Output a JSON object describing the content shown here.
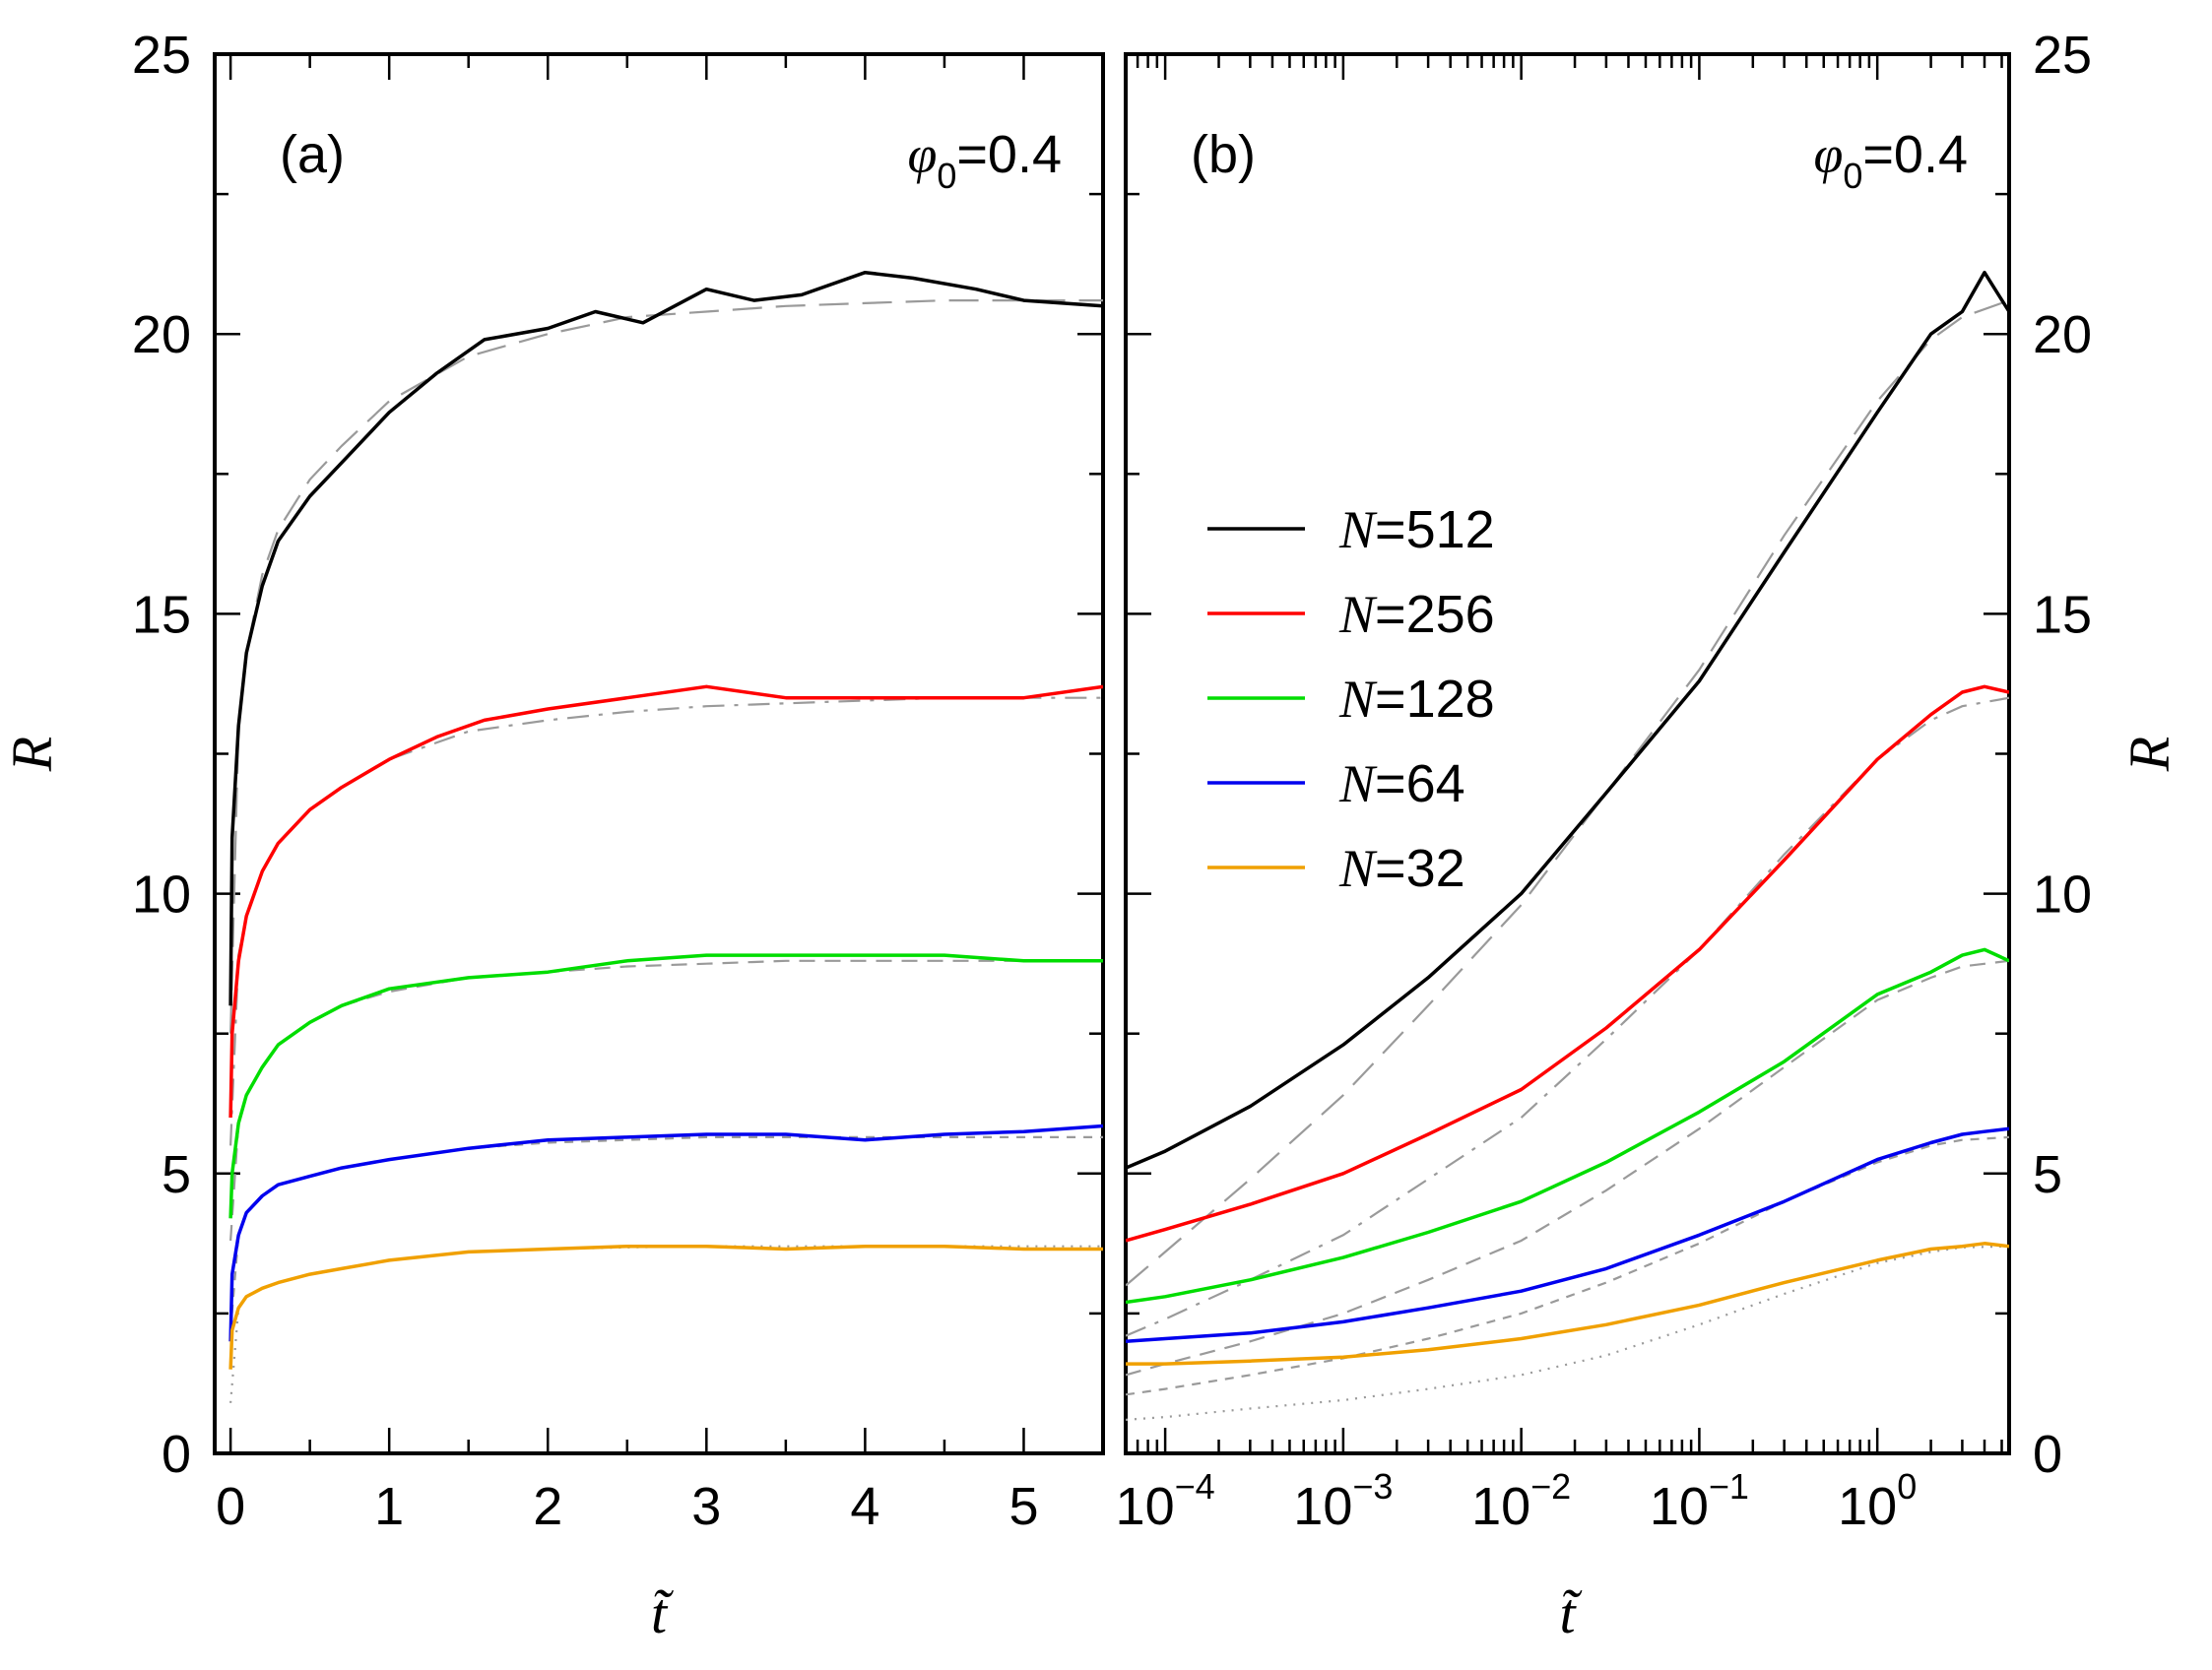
{
  "chart_data": [
    {
      "type": "line",
      "panel_label": "(a)",
      "annotation": {
        "symbol": "φ",
        "subscript": "0",
        "text": "=0.4"
      },
      "xlabel": "t̃",
      "ylabel": "R",
      "xscale": "linear",
      "xlim": [
        -0.1,
        5.5
      ],
      "ylim": [
        0,
        25
      ],
      "xticks": [
        0,
        1,
        2,
        3,
        4,
        5
      ],
      "yticks": [
        0,
        5,
        10,
        15,
        20,
        25
      ],
      "grid": false,
      "series": [
        {
          "name": "N=512",
          "color": "#000000",
          "x": [
            0,
            0.01,
            0.05,
            0.1,
            0.2,
            0.3,
            0.5,
            0.7,
            1.0,
            1.3,
            1.6,
            2.0,
            2.3,
            2.6,
            3.0,
            3.3,
            3.6,
            4.0,
            4.3,
            4.7,
            5.0,
            5.5
          ],
          "y": [
            8.0,
            11.0,
            13.0,
            14.3,
            15.5,
            16.3,
            17.1,
            17.7,
            18.6,
            19.3,
            19.9,
            20.1,
            20.4,
            20.2,
            20.8,
            20.6,
            20.7,
            21.1,
            21.0,
            20.8,
            20.6,
            20.5
          ]
        },
        {
          "name": "N=256",
          "color": "#ff0000",
          "x": [
            0,
            0.01,
            0.05,
            0.1,
            0.2,
            0.3,
            0.5,
            0.7,
            1.0,
            1.3,
            1.6,
            2.0,
            2.5,
            3.0,
            3.5,
            4.0,
            4.5,
            5.0,
            5.5
          ],
          "y": [
            6.0,
            7.5,
            8.8,
            9.6,
            10.4,
            10.9,
            11.5,
            11.9,
            12.4,
            12.8,
            13.1,
            13.3,
            13.5,
            13.7,
            13.5,
            13.5,
            13.5,
            13.5,
            13.7
          ]
        },
        {
          "name": "N=128",
          "color": "#00dd00",
          "x": [
            0,
            0.01,
            0.05,
            0.1,
            0.2,
            0.3,
            0.5,
            0.7,
            1.0,
            1.5,
            2.0,
            2.5,
            3.0,
            3.5,
            4.0,
            4.5,
            5.0,
            5.5
          ],
          "y": [
            4.2,
            5.0,
            5.9,
            6.4,
            6.9,
            7.3,
            7.7,
            8.0,
            8.3,
            8.5,
            8.6,
            8.8,
            8.9,
            8.9,
            8.9,
            8.9,
            8.8,
            8.8
          ]
        },
        {
          "name": "N=64",
          "color": "#0000ee",
          "x": [
            0,
            0.01,
            0.05,
            0.1,
            0.2,
            0.3,
            0.5,
            0.7,
            1.0,
            1.5,
            2.0,
            2.5,
            3.0,
            3.5,
            4.0,
            4.5,
            5.0,
            5.5
          ],
          "y": [
            2.0,
            3.2,
            3.9,
            4.3,
            4.6,
            4.8,
            4.95,
            5.1,
            5.25,
            5.45,
            5.6,
            5.65,
            5.7,
            5.7,
            5.6,
            5.7,
            5.75,
            5.85
          ]
        },
        {
          "name": "N=32",
          "color": "#f0a000",
          "x": [
            0,
            0.01,
            0.05,
            0.1,
            0.2,
            0.3,
            0.5,
            0.7,
            1.0,
            1.5,
            2.0,
            2.5,
            3.0,
            3.5,
            4.0,
            4.5,
            5.0,
            5.5
          ],
          "y": [
            1.5,
            2.2,
            2.6,
            2.8,
            2.95,
            3.05,
            3.2,
            3.3,
            3.45,
            3.6,
            3.65,
            3.7,
            3.7,
            3.65,
            3.7,
            3.7,
            3.65,
            3.65
          ]
        }
      ],
      "fits": [
        {
          "style": "long-dash",
          "x": [
            0,
            0.05,
            0.1,
            0.2,
            0.3,
            0.5,
            0.7,
            1.0,
            1.5,
            2.0,
            2.5,
            3.0,
            3.5,
            4.0,
            4.5,
            5.0,
            5.5
          ],
          "y": [
            7.5,
            13.0,
            14.3,
            15.7,
            16.5,
            17.4,
            18.0,
            18.8,
            19.6,
            20.0,
            20.3,
            20.4,
            20.5,
            20.55,
            20.6,
            20.6,
            20.6
          ]
        },
        {
          "style": "dash-dot",
          "x": [
            0,
            0.05,
            0.1,
            0.2,
            0.3,
            0.5,
            0.7,
            1.0,
            1.5,
            2.0,
            2.5,
            3.0,
            3.5,
            4.0,
            4.5,
            5.0,
            5.5
          ],
          "y": [
            5.5,
            8.9,
            9.6,
            10.4,
            10.9,
            11.5,
            11.9,
            12.4,
            12.9,
            13.1,
            13.25,
            13.35,
            13.4,
            13.45,
            13.5,
            13.5,
            13.5
          ]
        },
        {
          "style": "dash",
          "x": [
            0,
            0.05,
            0.1,
            0.2,
            0.3,
            0.5,
            0.7,
            1.0,
            1.5,
            2.0,
            2.5,
            3.0,
            3.5,
            4.0,
            4.5,
            5.0,
            5.5
          ],
          "y": [
            3.8,
            5.9,
            6.4,
            6.9,
            7.3,
            7.7,
            8.0,
            8.25,
            8.5,
            8.6,
            8.7,
            8.75,
            8.8,
            8.8,
            8.8,
            8.8,
            8.8
          ]
        },
        {
          "style": "short-dash",
          "x": [
            0,
            0.05,
            0.1,
            0.2,
            0.3,
            0.5,
            0.7,
            1.0,
            1.5,
            2.0,
            2.5,
            3.0,
            3.5,
            4.0,
            4.5,
            5.0,
            5.5
          ],
          "y": [
            2.2,
            3.9,
            4.3,
            4.6,
            4.8,
            4.95,
            5.1,
            5.25,
            5.45,
            5.55,
            5.6,
            5.65,
            5.65,
            5.65,
            5.65,
            5.65,
            5.65
          ]
        },
        {
          "style": "dot",
          "x": [
            0,
            0.05,
            0.1,
            0.2,
            0.3,
            0.5,
            0.7,
            1.0,
            1.5,
            2.0,
            2.5,
            3.0,
            3.5,
            4.0,
            4.5,
            5.0,
            5.5
          ],
          "y": [
            0.9,
            2.6,
            2.8,
            2.95,
            3.05,
            3.2,
            3.3,
            3.45,
            3.6,
            3.65,
            3.68,
            3.7,
            3.7,
            3.7,
            3.7,
            3.7,
            3.7
          ]
        }
      ]
    },
    {
      "type": "line",
      "panel_label": "(b)",
      "annotation": {
        "symbol": "φ",
        "subscript": "0",
        "text": "=0.4"
      },
      "xlabel": "t̃",
      "ylabel": "R",
      "xscale": "log",
      "xlim": [
        6e-05,
        5.5
      ],
      "ylim": [
        0,
        25
      ],
      "xticks": [
        0.0001,
        0.001,
        0.01,
        0.1,
        1
      ],
      "xtick_labels": [
        {
          "base": "10",
          "exp": "−4"
        },
        {
          "base": "10",
          "exp": "−3"
        },
        {
          "base": "10",
          "exp": "−2"
        },
        {
          "base": "10",
          "exp": "−1"
        },
        {
          "base": "10",
          "exp": "0"
        }
      ],
      "yticks": [
        0,
        5,
        10,
        15,
        20,
        25
      ],
      "grid": false,
      "legend": {
        "placement": "center-left"
      },
      "series": [
        {
          "name": "N=512",
          "label_var": "N",
          "label_rest": "=512",
          "color": "#000000",
          "x": [
            6e-05,
            0.0001,
            0.0003,
            0.001,
            0.003,
            0.01,
            0.03,
            0.1,
            0.3,
            1.0,
            2.0,
            3.0,
            4.0,
            5.5
          ],
          "y": [
            5.1,
            5.4,
            6.2,
            7.3,
            8.5,
            10.0,
            11.8,
            13.8,
            16.1,
            18.6,
            20.0,
            20.4,
            21.1,
            20.4
          ]
        },
        {
          "name": "N=256",
          "label_var": "N",
          "label_rest": "=256",
          "color": "#ff0000",
          "x": [
            6e-05,
            0.0001,
            0.0003,
            0.001,
            0.003,
            0.01,
            0.03,
            0.1,
            0.3,
            1.0,
            2.0,
            3.0,
            4.0,
            5.5
          ],
          "y": [
            3.8,
            4.0,
            4.45,
            5.0,
            5.7,
            6.5,
            7.6,
            9.0,
            10.6,
            12.4,
            13.2,
            13.6,
            13.7,
            13.6
          ]
        },
        {
          "name": "N=128",
          "label_var": "N",
          "label_rest": "=128",
          "color": "#00dd00",
          "x": [
            6e-05,
            0.0001,
            0.0003,
            0.001,
            0.003,
            0.01,
            0.03,
            0.1,
            0.3,
            1.0,
            2.0,
            3.0,
            4.0,
            5.5
          ],
          "y": [
            2.7,
            2.8,
            3.1,
            3.5,
            3.95,
            4.5,
            5.2,
            6.1,
            7.0,
            8.2,
            8.6,
            8.9,
            9.0,
            8.8
          ]
        },
        {
          "name": "N=64",
          "label_var": "N",
          "label_rest": "=64",
          "color": "#0000ee",
          "x": [
            6e-05,
            0.0001,
            0.0003,
            0.001,
            0.003,
            0.01,
            0.03,
            0.1,
            0.3,
            1.0,
            2.0,
            3.0,
            4.0,
            5.5
          ],
          "y": [
            2.0,
            2.05,
            2.15,
            2.35,
            2.6,
            2.9,
            3.3,
            3.9,
            4.5,
            5.25,
            5.55,
            5.7,
            5.75,
            5.8
          ]
        },
        {
          "name": "N=32",
          "label_var": "N",
          "label_rest": "=32",
          "color": "#f0a000",
          "x": [
            6e-05,
            0.0001,
            0.0003,
            0.001,
            0.003,
            0.01,
            0.03,
            0.1,
            0.3,
            1.0,
            2.0,
            3.0,
            4.0,
            5.5
          ],
          "y": [
            1.6,
            1.6,
            1.65,
            1.72,
            1.85,
            2.05,
            2.3,
            2.65,
            3.05,
            3.45,
            3.65,
            3.7,
            3.75,
            3.7
          ]
        }
      ],
      "fits": [
        {
          "style": "long-dash",
          "x": [
            6e-05,
            0.0001,
            0.0003,
            0.001,
            0.003,
            0.01,
            0.03,
            0.1,
            0.3,
            1.0,
            2.0,
            3.0,
            5.5
          ],
          "y": [
            3.0,
            3.6,
            4.9,
            6.4,
            8.0,
            9.8,
            11.8,
            14.0,
            16.4,
            18.8,
            19.9,
            20.3,
            20.6
          ]
        },
        {
          "style": "dash-dot",
          "x": [
            6e-05,
            0.0001,
            0.0003,
            0.001,
            0.003,
            0.01,
            0.03,
            0.1,
            0.3,
            1.0,
            2.0,
            3.0,
            5.5
          ],
          "y": [
            2.1,
            2.4,
            3.1,
            3.9,
            4.9,
            6.0,
            7.4,
            9.0,
            10.7,
            12.4,
            13.1,
            13.35,
            13.5
          ]
        },
        {
          "style": "dash",
          "x": [
            6e-05,
            0.0001,
            0.0003,
            0.001,
            0.003,
            0.01,
            0.03,
            0.1,
            0.3,
            1.0,
            2.0,
            3.0,
            5.5
          ],
          "y": [
            1.4,
            1.6,
            2.0,
            2.5,
            3.1,
            3.8,
            4.7,
            5.8,
            6.9,
            8.1,
            8.5,
            8.7,
            8.8
          ]
        },
        {
          "style": "short-dash",
          "x": [
            6e-05,
            0.0001,
            0.0003,
            0.001,
            0.003,
            0.01,
            0.03,
            0.1,
            0.3,
            1.0,
            2.0,
            3.0,
            5.5
          ],
          "y": [
            1.05,
            1.15,
            1.4,
            1.7,
            2.05,
            2.5,
            3.05,
            3.75,
            4.5,
            5.2,
            5.5,
            5.6,
            5.65
          ]
        },
        {
          "style": "dot",
          "x": [
            6e-05,
            0.0001,
            0.0003,
            0.001,
            0.003,
            0.01,
            0.03,
            0.1,
            0.3,
            1.0,
            2.0,
            3.0,
            5.5
          ],
          "y": [
            0.6,
            0.65,
            0.8,
            0.95,
            1.15,
            1.4,
            1.75,
            2.3,
            2.85,
            3.4,
            3.6,
            3.68,
            3.7
          ]
        }
      ]
    }
  ]
}
